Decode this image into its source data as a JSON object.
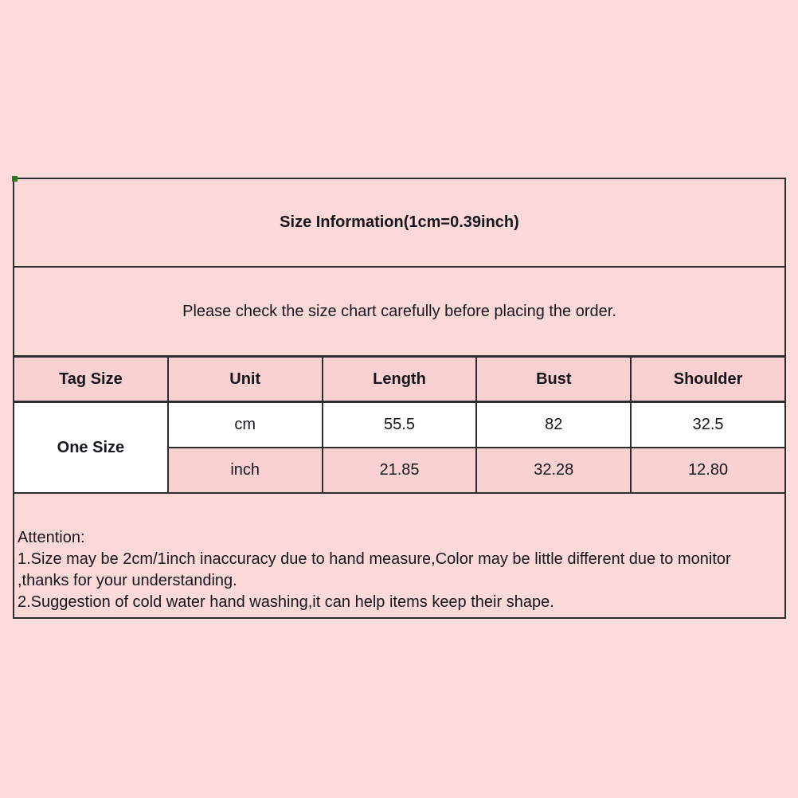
{
  "page": {
    "background_color": "#fcdbdb",
    "border_color": "#2d2d2d",
    "header_fill_color": "#f9d1d1",
    "light_fill_color": "#fbd9d9",
    "corner_marker_color": "#1e7e1e"
  },
  "size_chart": {
    "title": "Size Information(1cm=0.39inch)",
    "subtitle": "Please check the size chart carefully before placing the order.",
    "columns": [
      "Tag Size",
      "Unit",
      "Length",
      "Bust",
      "Shoulder"
    ],
    "tag_size": "One Size",
    "rows": [
      {
        "unit": "cm",
        "length": "55.5",
        "bust": "82",
        "shoulder": "32.5"
      },
      {
        "unit": "inch",
        "length": "21.85",
        "bust": "32.28",
        "shoulder": "12.80"
      }
    ],
    "attention": {
      "lines": [
        "Attention:",
        "1.Size may be 2cm/1inch inaccuracy due to hand measure,Color may be little different due to monitor",
        ",thanks for your understanding.",
        "2.Suggestion of cold water hand washing,it can help items keep their shape."
      ]
    }
  },
  "chart_data": {
    "type": "table",
    "title": "Size Information(1cm=0.39inch)",
    "columns": [
      "Tag Size",
      "Unit",
      "Length",
      "Bust",
      "Shoulder"
    ],
    "rows": [
      [
        "One Size",
        "cm",
        55.5,
        82,
        32.5
      ],
      [
        "One Size",
        "inch",
        21.85,
        32.28,
        12.8
      ]
    ]
  }
}
